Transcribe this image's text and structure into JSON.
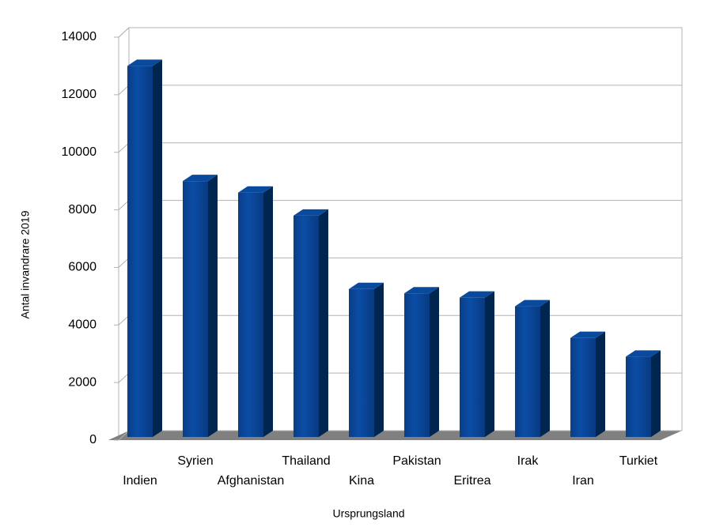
{
  "chart_data": {
    "type": "bar3d",
    "x_label": "Ursprungsland",
    "y_label": "Antal invandrare 2019",
    "categories": [
      "Indien",
      "Syrien",
      "Afghanistan",
      "Thailand",
      "Kina",
      "Pakistan",
      "Eritrea",
      "Irak",
      "Iran",
      "Turkiet"
    ],
    "values": [
      13000,
      9000,
      8600,
      7800,
      5250,
      5100,
      4950,
      4650,
      3550,
      2900
    ],
    "color": "#004494",
    "ylim": [
      0,
      14000
    ],
    "yticks": [
      0,
      2000,
      4000,
      6000,
      8000,
      10000,
      12000,
      14000
    ],
    "grid": true
  }
}
